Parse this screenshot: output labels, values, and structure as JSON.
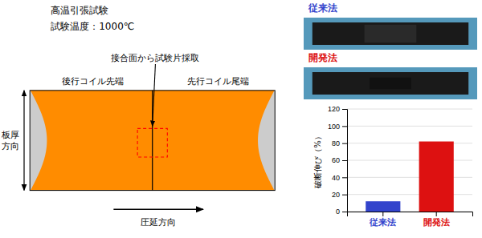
{
  "chart_data": {
    "type": "bar",
    "title": "高温引張試験",
    "subtitle": "試験温度：1000℃",
    "y_label": "破断伸び（%）",
    "categories": [
      "従来法",
      "開発法"
    ],
    "values": [
      12,
      82
    ],
    "colors": [
      "#3344cc",
      "#dd1111"
    ],
    "ylim": [
      0,
      120
    ],
    "yticks": [
      0,
      20,
      40,
      60,
      80,
      100,
      120
    ],
    "grid": true,
    "annotations": [
      "後行コイル先端",
      "先行コイル尾端",
      "接合面から試験片採取",
      "板厚\n方向",
      "圧延方向",
      "従来法",
      "開発法"
    ]
  }
}
